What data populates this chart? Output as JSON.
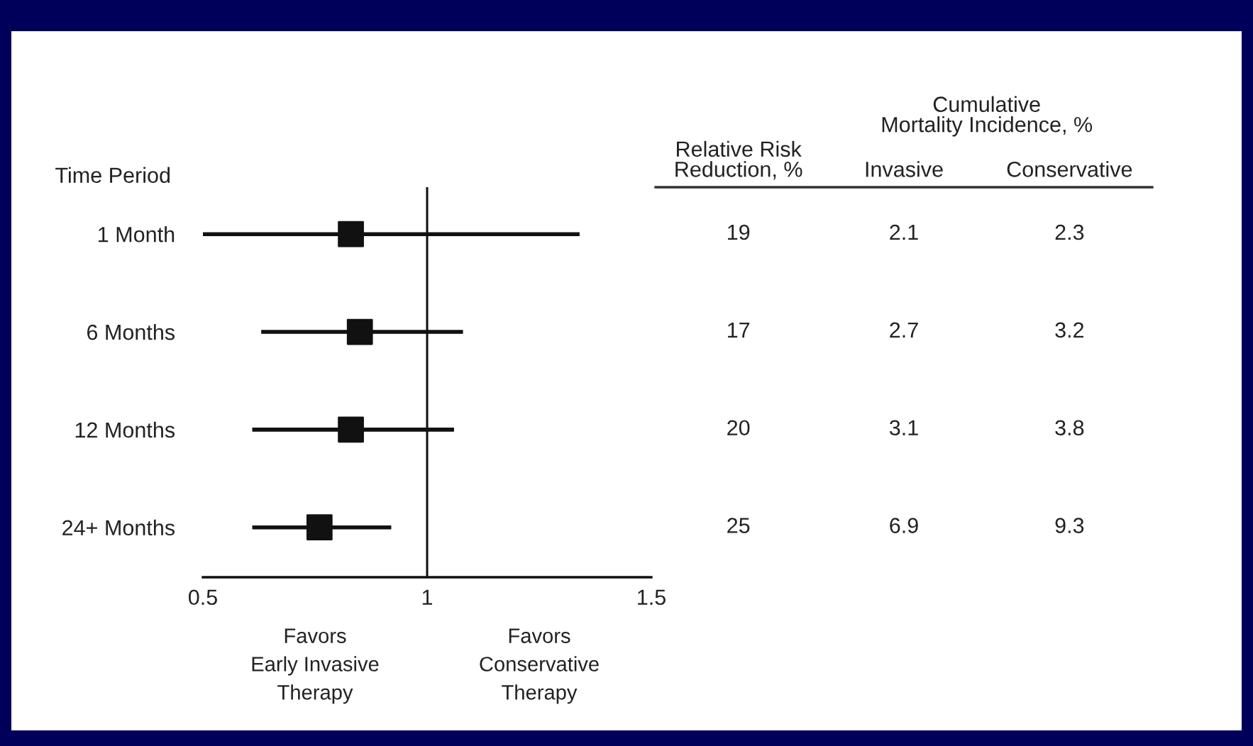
{
  "chart_data": [
    {
      "type": "scatter",
      "orientation": "horizontal",
      "categories": [
        "1 Month",
        "6 Months",
        "12 Months",
        "24+ Months"
      ],
      "values": [
        0.83,
        0.85,
        0.83,
        0.76
      ],
      "errors": [
        [
          0.5,
          1.34
        ],
        [
          0.63,
          1.08
        ],
        [
          0.61,
          1.06
        ],
        [
          0.61,
          0.92
        ]
      ],
      "color": "#111111",
      "marker": "square",
      "ylabel": "Time Period",
      "xlim": [
        0.5,
        1.5
      ],
      "xticks": [
        0.5,
        1,
        1.5
      ],
      "ref_lines": [
        {
          "axis": "x",
          "value": 1,
          "color": "#111111"
        }
      ],
      "annotations": [
        "Favors\nEarly Invasive\nTherapy",
        "Favors\nConservative\nTherapy"
      ],
      "grid": false,
      "legend": false
    },
    {
      "type": "heatmap",
      "categories": [
        "Relative Risk\nReduction, %",
        "Invasive",
        "Conservative"
      ],
      "y_categories": [
        null,
        null,
        null,
        null
      ],
      "cells": [
        [
          19,
          2.1,
          2.3
        ],
        [
          17,
          2.7,
          3.2
        ],
        [
          20,
          3.1,
          3.8
        ],
        [
          25,
          6.9,
          9.3
        ]
      ],
      "color": "#ffffff",
      "annotations": [
        "Cumulative\nMortality Incidence, %"
      ],
      "data_labels": true
    }
  ]
}
